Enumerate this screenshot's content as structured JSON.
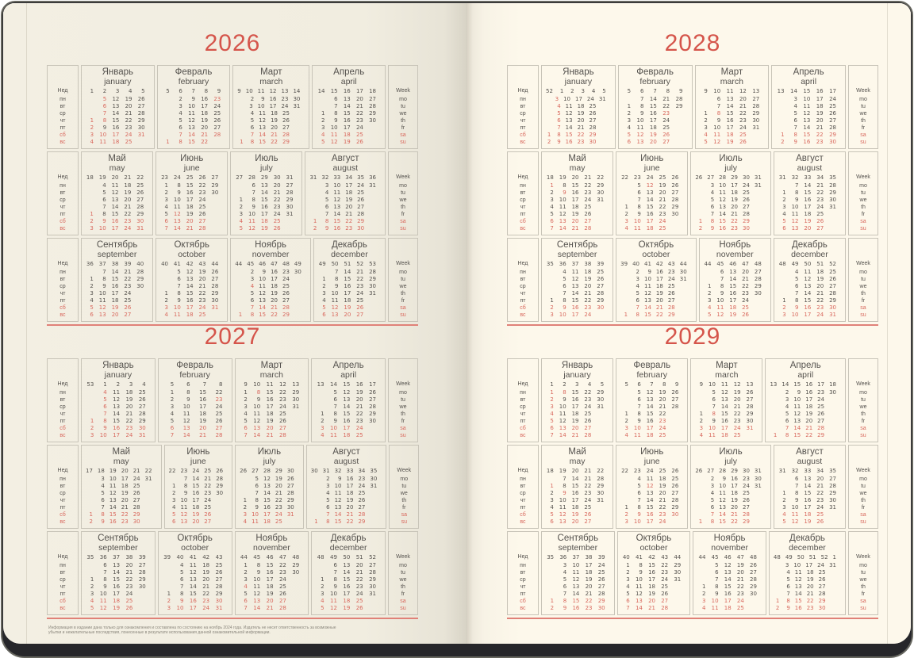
{
  "years": [
    {
      "label": "2026",
      "value": 2026
    },
    {
      "label": "2027",
      "value": 2027
    },
    {
      "label": "2028",
      "value": 2028
    },
    {
      "label": "2029",
      "value": 2029
    }
  ],
  "months": [
    {
      "ru": "Январь",
      "en": "january"
    },
    {
      "ru": "Февраль",
      "en": "february"
    },
    {
      "ru": "Март",
      "en": "march"
    },
    {
      "ru": "Апрель",
      "en": "april"
    },
    {
      "ru": "Май",
      "en": "may"
    },
    {
      "ru": "Июнь",
      "en": "june"
    },
    {
      "ru": "Июль",
      "en": "july"
    },
    {
      "ru": "Август",
      "en": "august"
    },
    {
      "ru": "Сентябрь",
      "en": "september"
    },
    {
      "ru": "Октябрь",
      "en": "october"
    },
    {
      "ru": "Ноябрь",
      "en": "november"
    },
    {
      "ru": "Декабрь",
      "en": "december"
    }
  ],
  "week_header": {
    "ru": "Нед",
    "en": "Week"
  },
  "weekdays": {
    "ru": [
      "пн",
      "вт",
      "ср",
      "чт",
      "пт",
      "сб",
      "вс"
    ],
    "en": [
      "mo",
      "tu",
      "we",
      "th",
      "fr",
      "sa",
      "su"
    ]
  },
  "holidays": [
    "1-1",
    "1-2",
    "1-3",
    "1-4",
    "1-5",
    "1-6",
    "1-7",
    "1-8",
    "2-23",
    "3-8",
    "5-1",
    "5-9",
    "6-12",
    "11-4"
  ],
  "footer": {
    "text": "Информация в издании дана только для ознакомления и составлена по состоянию на ноябрь 2024 года. Издатель не несет ответственность за возможные убытки и нежелательные последствия, понесенные в результате использования данной ознакомительной информации."
  },
  "colors": {
    "accent_red": "#d5554b",
    "date_red": "#d8685d",
    "ink": "#55524e",
    "border": "#c8c4b8",
    "page_left": "#f1ede0",
    "page_right": "#fdf8eb",
    "cover": "#26262a"
  }
}
